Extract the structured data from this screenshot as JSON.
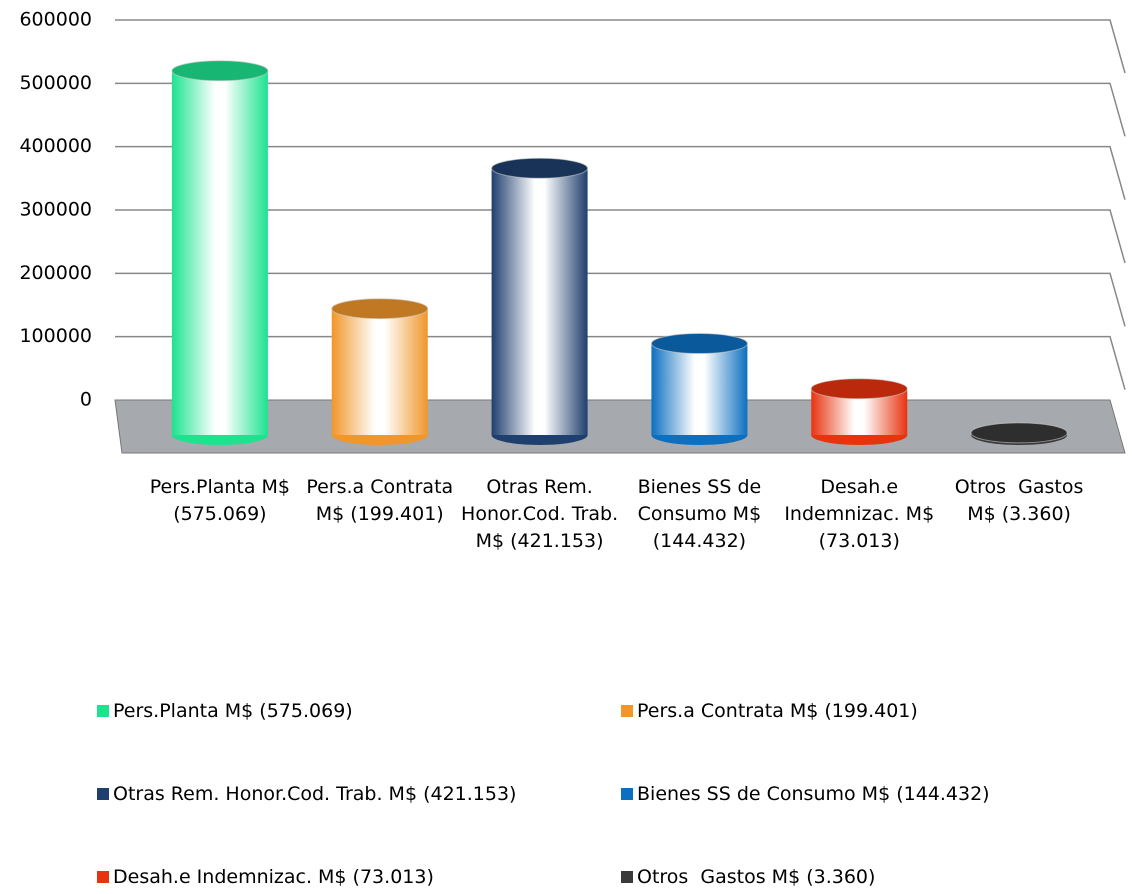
{
  "chart_data": {
    "type": "bar",
    "categories": [
      "Pers.Planta M$ (575.069)",
      "Pers.a Contrata M$ (199.401)",
      "Otras Rem. Honor.Cod. Trab. M$ (421.153)",
      "Bienes SS de Consumo M$ (144.432)",
      "Desah.e Indemnizac. M$ (73.013)",
      "Otros  Gastos M$ (3.360)"
    ],
    "values": [
      575069,
      199401,
      421153,
      144432,
      73013,
      3360
    ],
    "colors": [
      "#1de38f",
      "#f0962a",
      "#1f3f6e",
      "#0d6fc0",
      "#e8330f",
      "#3a3a3a"
    ],
    "ylim": [
      0,
      600000
    ],
    "yticks": [
      0,
      100000,
      200000,
      300000,
      400000,
      500000,
      600000
    ],
    "grid": true,
    "legend": "bottom"
  }
}
